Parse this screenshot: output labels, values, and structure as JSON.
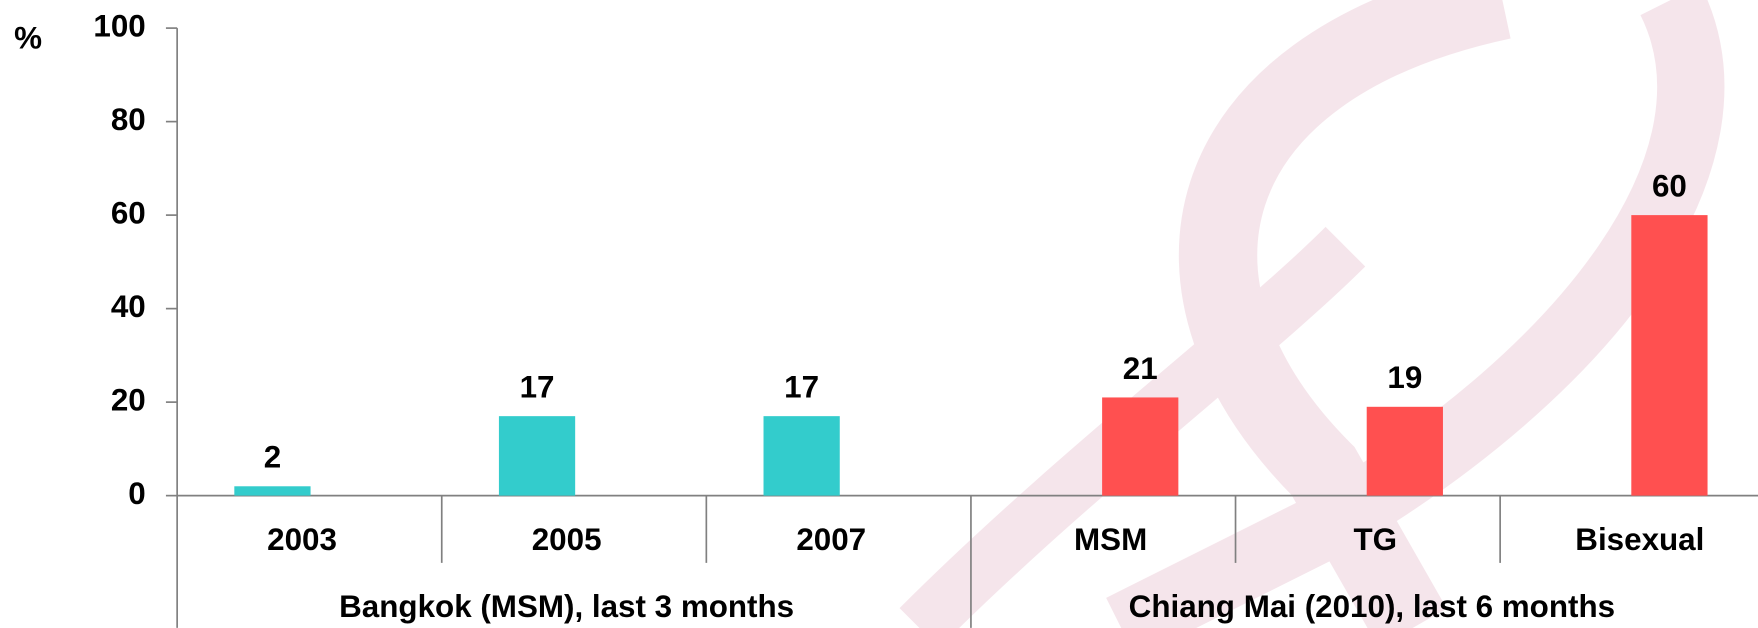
{
  "chart_data": {
    "type": "bar",
    "y_label": "%",
    "ylim": [
      0,
      100
    ],
    "yticks": [
      0,
      20,
      40,
      60,
      80,
      100
    ],
    "groups": [
      {
        "label": "Bangkok (MSM), last 3 months",
        "color": "#33cccc",
        "categories": [
          "2003",
          "2005",
          "2007"
        ],
        "values": [
          2,
          17,
          17
        ]
      },
      {
        "label": "Chiang Mai (2010), last 6 months",
        "color": "#ff5050",
        "categories": [
          "MSM",
          "TG",
          "Bisexual"
        ],
        "values": [
          21,
          19,
          60
        ]
      }
    ]
  }
}
